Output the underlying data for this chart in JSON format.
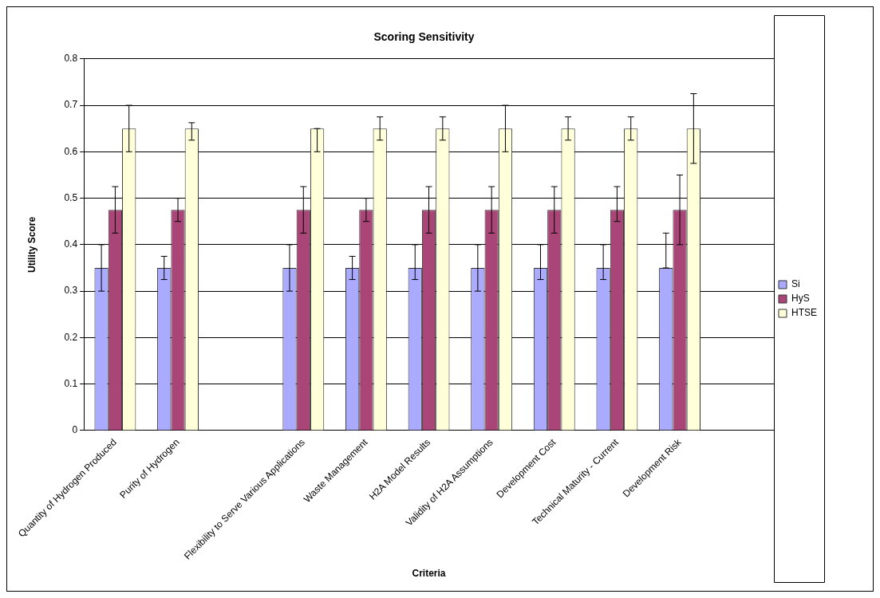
{
  "chart_data": {
    "type": "bar",
    "title": "Scoring Sensitivity",
    "xlabel": "Criteria",
    "ylabel": "Utility Score",
    "categories": [
      "Quantity of Hydrogen Produced",
      "Purity of Hydrogen",
      null,
      "Flexibility to Serve Various Applications",
      "Waste Management",
      "H2A Model Results",
      "Validity of H2A Assumptions",
      "Development Cost",
      "Technical Maturity - Current",
      "Development Risk",
      null
    ],
    "series": [
      {
        "name": "Si",
        "color": "#aaaaff",
        "values": [
          0.35,
          0.35,
          null,
          0.35,
          0.35,
          0.35,
          0.35,
          0.35,
          0.35,
          0.35,
          null
        ],
        "errors": [
          [
            0.3,
            0.4
          ],
          [
            0.325,
            0.375
          ],
          null,
          [
            0.3,
            0.4
          ],
          [
            0.325,
            0.375
          ],
          [
            0.325,
            0.4
          ],
          [
            0.3,
            0.4
          ],
          [
            0.325,
            0.4
          ],
          [
            0.325,
            0.4
          ],
          [
            0.35,
            0.425
          ],
          null
        ]
      },
      {
        "name": "HyS",
        "color": "#aa4677",
        "values": [
          0.475,
          0.475,
          null,
          0.475,
          0.475,
          0.475,
          0.475,
          0.475,
          0.475,
          0.475,
          null
        ],
        "errors": [
          [
            0.425,
            0.525
          ],
          [
            0.45,
            0.5
          ],
          null,
          [
            0.425,
            0.525
          ],
          [
            0.45,
            0.5
          ],
          [
            0.425,
            0.525
          ],
          [
            0.425,
            0.525
          ],
          [
            0.425,
            0.525
          ],
          [
            0.45,
            0.525
          ],
          [
            0.4,
            0.55
          ],
          null
        ]
      },
      {
        "name": "HTSE",
        "color": "#ffffd9",
        "values": [
          0.65,
          0.65,
          null,
          0.65,
          0.65,
          0.65,
          0.65,
          0.65,
          0.65,
          0.65,
          null
        ],
        "errors": [
          [
            0.6,
            0.7
          ],
          [
            0.625,
            0.6625
          ],
          null,
          [
            0.6,
            0.65
          ],
          [
            0.625,
            0.675
          ],
          [
            0.625,
            0.675
          ],
          [
            0.6,
            0.7
          ],
          [
            0.625,
            0.675
          ],
          [
            0.625,
            0.675
          ],
          [
            0.575,
            0.725
          ],
          null
        ]
      }
    ],
    "ylim": [
      0,
      0.8
    ],
    "yticks": [
      0,
      0.1,
      0.2,
      0.3,
      0.4,
      0.5,
      0.6,
      0.7,
      0.8
    ],
    "grid": "y",
    "legend": "right"
  }
}
